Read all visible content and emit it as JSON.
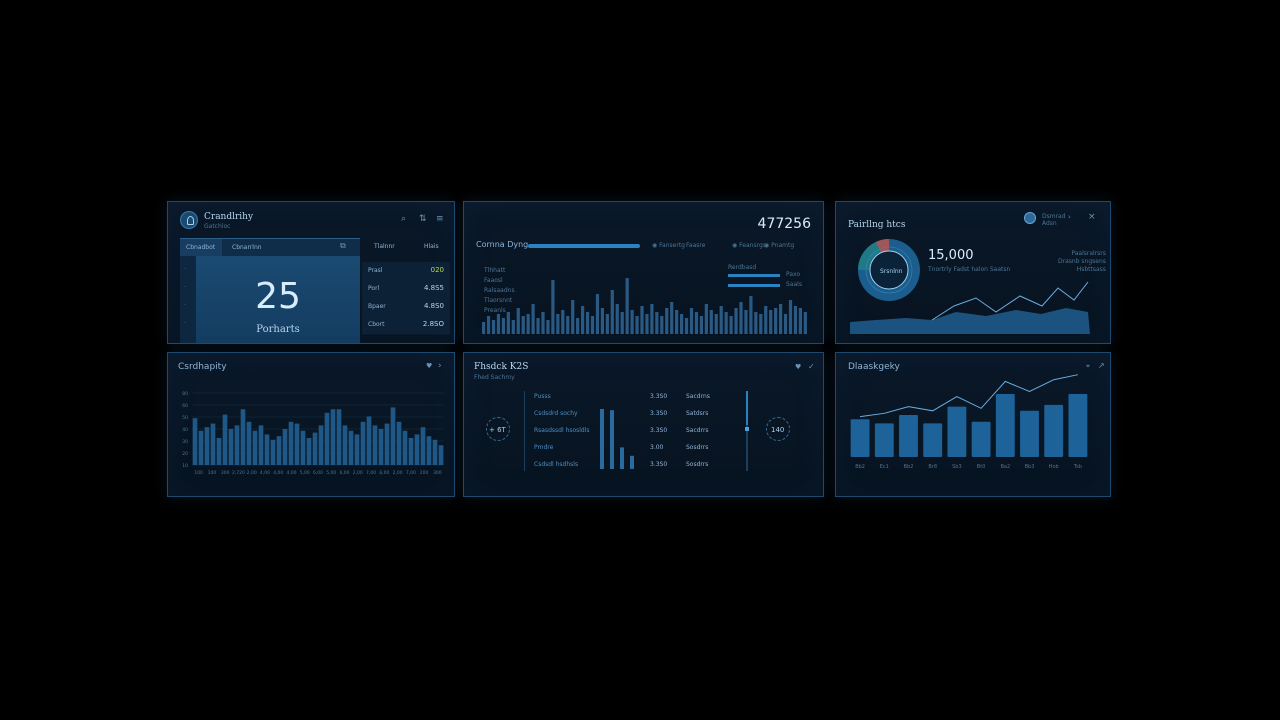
{
  "panel1": {
    "title": "Crandlrihy",
    "subtitle": "Gatchloc",
    "tabs": [
      "Cbnadbot",
      "Cbnarrlnn"
    ],
    "side_headers": [
      "Tlalnnr",
      "Hlais"
    ],
    "big_number": "25",
    "big_label": "Porharts",
    "rows": [
      {
        "label": "Prasl",
        "value": "020",
        "value_color": "#b8d84a"
      },
      {
        "label": "Porl",
        "value": "4.8S5",
        "value_color": "#b6d6ee"
      },
      {
        "label": "Bpaer",
        "value": "4.8S0",
        "value_color": "#b6d6ee"
      },
      {
        "label": "Cbort",
        "value": "2.8SO",
        "value_color": "#b6d6ee"
      }
    ]
  },
  "panel2": {
    "title": "Cornna Dyng",
    "big_number": "477256",
    "legend": [
      "Fansertg",
      "Faasre",
      "Feansrgs",
      "Pnamtg"
    ],
    "mini_bars_label": "Rerdbasd",
    "mini_bars": [
      {
        "value": 0.8,
        "label": "Paxo"
      },
      {
        "value": 0.8,
        "label": "Saals"
      }
    ],
    "axis_labels": [
      "Tlhhatt",
      "Faaosl",
      "Ralsaadns",
      "Tlaorsnnt",
      "Preanls"
    ]
  },
  "panel3": {
    "title": "Pairllng htcs",
    "user_name": "Dsmrad",
    "user_sub": "Adsn",
    "big_number": "15,000",
    "caption": "Tnortrly Fadst halon Saatsn",
    "pie_label": "Srsnlnn",
    "legend": [
      "Paalsralrsrs",
      "Drasnb sngsens",
      "Hsbttsass"
    ]
  },
  "panel4": {
    "title": "Csrdhapity",
    "chart_data": {
      "type": "bar",
      "values": [
        52,
        38,
        42,
        46,
        30,
        56,
        40,
        44,
        62,
        48,
        38,
        44,
        34,
        28,
        32,
        40,
        48,
        46,
        38,
        30,
        36,
        44,
        58,
        62,
        62,
        44,
        38,
        34,
        48,
        54,
        44,
        40,
        46,
        64,
        48,
        38,
        30,
        34,
        42,
        32,
        28,
        22
      ],
      "ylim": [
        0,
        80
      ],
      "y_ticks": [
        "80",
        "60",
        "50",
        "40",
        "30",
        "20",
        "10"
      ],
      "x_ticks": [
        "100",
        "100",
        "300",
        "2,720",
        "2,00",
        "4,00",
        "4,00",
        "4,00",
        "5,00",
        "6,00",
        "5,00",
        "6,00",
        "2,00",
        "7,00",
        "8,00",
        "2,00",
        "7,00",
        "200",
        "300"
      ]
    }
  },
  "panel5": {
    "title": "Fhsdck K2S",
    "subtitle": "Fhed Sachmy",
    "left_dial": "+ 6T",
    "right_dial": "140",
    "rows": [
      {
        "name": "Pusss",
        "value": "3.3S0",
        "tag": "Sacdrns"
      },
      {
        "name": "Csdsdrd sochy",
        "value": "3.3S0",
        "tag": "Satdsrs"
      },
      {
        "name": "Rsasdssdl hsosldls",
        "value": "3.3S0",
        "tag": "Sacdrrs"
      },
      {
        "name": "Pmdre",
        "value": "3.00",
        "tag": "Sosdrrs"
      },
      {
        "name": "Csdsdl hsdhsls",
        "value": "3.3S0",
        "tag": "Sosdrrs"
      }
    ],
    "chart_data": {
      "type": "bar",
      "values": [
        100,
        98,
        36,
        22
      ],
      "ylim": [
        0,
        100
      ]
    }
  },
  "panel6": {
    "title": "Dlaaskgeky",
    "chart_data": {
      "type": "bar",
      "categories": [
        "Bb2",
        "Ec1",
        "Bb2",
        "Br8",
        "Sb3",
        "Bt0",
        "Ba2",
        "Bb3",
        "Hob",
        "Tsb"
      ],
      "values": [
        45,
        40,
        50,
        40,
        60,
        42,
        75,
        55,
        62,
        75
      ],
      "line": [
        48,
        52,
        60,
        55,
        72,
        58,
        90,
        78,
        92,
        98
      ],
      "ylim": [
        0,
        100
      ]
    }
  },
  "colors": {
    "bg": "#000000",
    "panel": "#0a1828",
    "accent": "#2a78b4",
    "bar": "#1e5a8a",
    "text": "#8fb4d6",
    "bright_text": "#d8ecfb"
  }
}
